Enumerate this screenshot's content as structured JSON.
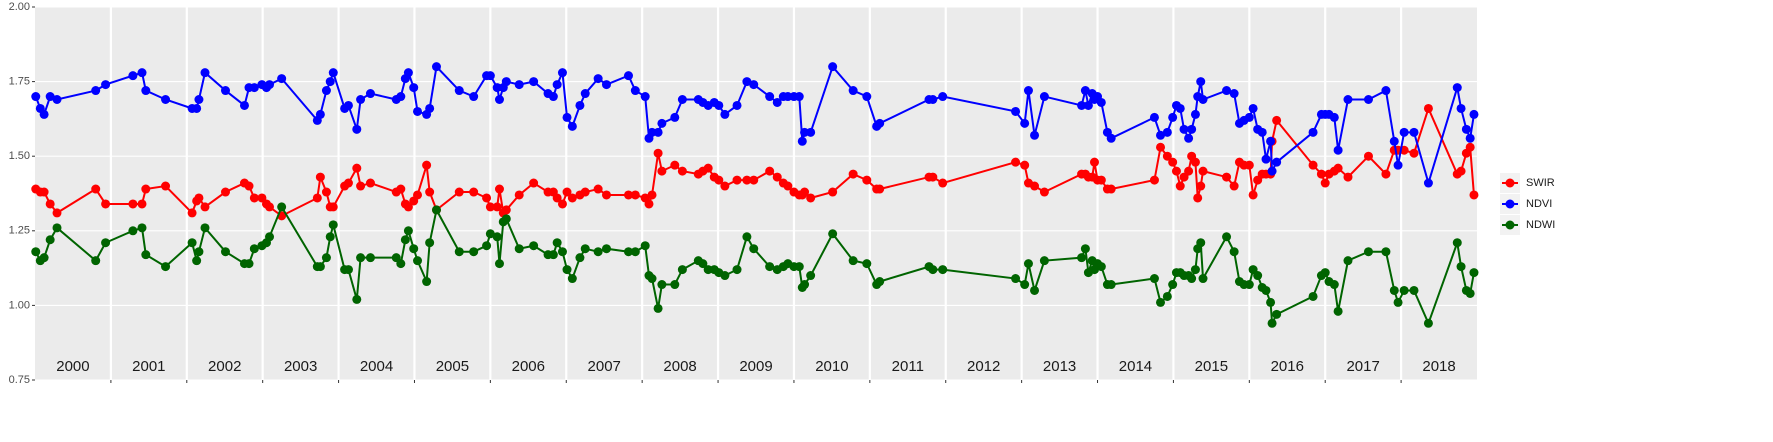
{
  "chart_data": {
    "type": "line",
    "x": [
      2000.01,
      2000.07,
      2000.12,
      2000.2,
      2000.29,
      2000.8,
      2000.93,
      2001.29,
      2001.41,
      2001.46,
      2001.72,
      2002.07,
      2002.13,
      2002.16,
      2002.24,
      2002.51,
      2002.76,
      2002.82,
      2002.89,
      2002.99,
      2003.05,
      2003.09,
      2003.25,
      2003.72,
      2003.76,
      2003.84,
      2003.89,
      2003.93,
      2004.08,
      2004.13,
      2004.24,
      2004.29,
      2004.42,
      2004.76,
      2004.82,
      2004.88,
      2004.92,
      2004.99,
      2005.04,
      2005.16,
      2005.2,
      2005.29,
      2005.59,
      2005.78,
      2005.95,
      2006,
      2006.09,
      2006.12,
      2006.17,
      2006.21,
      2006.38,
      2006.57,
      2006.76,
      2006.83,
      2006.88,
      2006.95,
      2007.01,
      2007.08,
      2007.18,
      2007.25,
      2007.42,
      2007.53,
      2007.82,
      2007.91,
      2008.04,
      2008.09,
      2008.13,
      2008.21,
      2008.26,
      2008.43,
      2008.53,
      2008.74,
      2008.8,
      2008.87,
      2008.95,
      2009.01,
      2009.09,
      2009.25,
      2009.38,
      2009.47,
      2009.68,
      2009.78,
      2009.86,
      2009.92,
      2010,
      2010.07,
      2010.11,
      2010.14,
      2010.22,
      2010.51,
      2010.78,
      2010.96,
      2011.09,
      2011.13,
      2011.78,
      2011.83,
      2011.96,
      2012.92,
      2013.04,
      2013.09,
      2013.17,
      2013.3,
      2013.79,
      2013.84,
      2013.88,
      2013.93,
      2013.96,
      2014,
      2014.05,
      2014.13,
      2014.18,
      2014.75,
      2014.83,
      2014.92,
      2014.99,
      2015.04,
      2015.09,
      2015.14,
      2015.2,
      2015.24,
      2015.29,
      2015.32,
      2015.36,
      2015.39,
      2015.7,
      2015.8,
      2015.87,
      2015.93,
      2016,
      2016.05,
      2016.11,
      2016.17,
      2016.22,
      2016.28,
      2016.3,
      2016.36,
      2016.84,
      2016.95,
      2017,
      2017.05,
      2017.12,
      2017.17,
      2017.3,
      2017.57,
      2017.8,
      2017.91,
      2017.96,
      2018.04,
      2018.17,
      2018.36,
      2018.74,
      2018.79,
      2018.86,
      2018.91,
      2018.96
    ],
    "series": [
      {
        "name": "SWIR",
        "color": "#ff0000",
        "values": [
          1.39,
          1.38,
          1.38,
          1.34,
          1.31,
          1.39,
          1.34,
          1.34,
          1.34,
          1.39,
          1.4,
          1.31,
          1.35,
          1.36,
          1.33,
          1.38,
          1.41,
          1.4,
          1.36,
          1.36,
          1.34,
          1.33,
          1.3,
          1.36,
          1.43,
          1.38,
          1.33,
          1.33,
          1.4,
          1.41,
          1.46,
          1.4,
          1.41,
          1.38,
          1.39,
          1.34,
          1.33,
          1.35,
          1.37,
          1.47,
          1.38,
          1.32,
          1.38,
          1.38,
          1.36,
          1.33,
          1.33,
          1.39,
          1.31,
          1.32,
          1.37,
          1.41,
          1.38,
          1.38,
          1.36,
          1.34,
          1.38,
          1.36,
          1.37,
          1.38,
          1.39,
          1.37,
          1.37,
          1.37,
          1.36,
          1.34,
          1.37,
          1.51,
          1.45,
          1.47,
          1.45,
          1.44,
          1.45,
          1.46,
          1.43,
          1.42,
          1.4,
          1.42,
          1.42,
          1.42,
          1.45,
          1.43,
          1.41,
          1.4,
          1.38,
          1.37,
          1.37,
          1.38,
          1.36,
          1.38,
          1.44,
          1.42,
          1.39,
          1.39,
          1.43,
          1.43,
          1.41,
          1.48,
          1.47,
          1.41,
          1.4,
          1.38,
          1.44,
          1.44,
          1.43,
          1.43,
          1.48,
          1.42,
          1.42,
          1.39,
          1.39,
          1.42,
          1.53,
          1.5,
          1.48,
          1.45,
          1.4,
          1.43,
          1.45,
          1.5,
          1.48,
          1.36,
          1.4,
          1.45,
          1.43,
          1.4,
          1.48,
          1.47,
          1.47,
          1.37,
          1.42,
          1.44,
          1.44,
          1.44,
          1.55,
          1.62,
          1.47,
          1.44,
          1.41,
          1.44,
          1.45,
          1.46,
          1.43,
          1.5,
          1.44,
          1.52,
          1.52,
          1.52,
          1.51,
          1.66,
          1.44,
          1.45,
          1.51,
          1.53,
          1.37
        ]
      },
      {
        "name": "NDVI",
        "color": "#0000ff",
        "values": [
          1.7,
          1.66,
          1.64,
          1.7,
          1.69,
          1.72,
          1.74,
          1.77,
          1.78,
          1.72,
          1.69,
          1.66,
          1.66,
          1.69,
          1.78,
          1.72,
          1.67,
          1.73,
          1.73,
          1.74,
          1.73,
          1.74,
          1.76,
          1.62,
          1.64,
          1.72,
          1.75,
          1.78,
          1.66,
          1.67,
          1.59,
          1.69,
          1.71,
          1.69,
          1.7,
          1.76,
          1.78,
          1.73,
          1.65,
          1.64,
          1.66,
          1.8,
          1.72,
          1.7,
          1.77,
          1.77,
          1.73,
          1.69,
          1.73,
          1.75,
          1.74,
          1.75,
          1.71,
          1.7,
          1.74,
          1.78,
          1.63,
          1.6,
          1.67,
          1.71,
          1.76,
          1.74,
          1.77,
          1.72,
          1.7,
          1.56,
          1.58,
          1.58,
          1.61,
          1.63,
          1.69,
          1.69,
          1.68,
          1.67,
          1.68,
          1.67,
          1.64,
          1.67,
          1.75,
          1.74,
          1.7,
          1.68,
          1.7,
          1.7,
          1.7,
          1.7,
          1.55,
          1.58,
          1.58,
          1.8,
          1.72,
          1.7,
          1.6,
          1.61,
          1.69,
          1.69,
          1.7,
          1.65,
          1.61,
          1.72,
          1.57,
          1.7,
          1.67,
          1.72,
          1.67,
          1.71,
          1.69,
          1.7,
          1.68,
          1.58,
          1.56,
          1.63,
          1.57,
          1.58,
          1.63,
          1.67,
          1.66,
          1.59,
          1.56,
          1.59,
          1.64,
          1.7,
          1.75,
          1.69,
          1.72,
          1.71,
          1.61,
          1.62,
          1.63,
          1.66,
          1.59,
          1.58,
          1.49,
          1.55,
          1.45,
          1.48,
          1.58,
          1.64,
          1.64,
          1.64,
          1.63,
          1.52,
          1.69,
          1.69,
          1.72,
          1.55,
          1.47,
          1.58,
          1.58,
          1.41,
          1.73,
          1.66,
          1.59,
          1.56,
          1.64
        ]
      },
      {
        "name": "NDWI",
        "color": "#006400",
        "values": [
          1.18,
          1.15,
          1.16,
          1.22,
          1.26,
          1.15,
          1.21,
          1.25,
          1.26,
          1.17,
          1.13,
          1.21,
          1.15,
          1.18,
          1.26,
          1.18,
          1.14,
          1.14,
          1.19,
          1.2,
          1.21,
          1.23,
          1.33,
          1.13,
          1.13,
          1.16,
          1.23,
          1.27,
          1.12,
          1.12,
          1.02,
          1.16,
          1.16,
          1.16,
          1.14,
          1.22,
          1.25,
          1.19,
          1.15,
          1.08,
          1.21,
          1.32,
          1.18,
          1.18,
          1.2,
          1.24,
          1.23,
          1.14,
          1.28,
          1.29,
          1.19,
          1.2,
          1.17,
          1.17,
          1.21,
          1.18,
          1.12,
          1.09,
          1.16,
          1.19,
          1.18,
          1.19,
          1.18,
          1.18,
          1.2,
          1.1,
          1.09,
          0.99,
          1.07,
          1.07,
          1.12,
          1.15,
          1.14,
          1.12,
          1.12,
          1.11,
          1.1,
          1.12,
          1.23,
          1.19,
          1.13,
          1.12,
          1.13,
          1.14,
          1.13,
          1.13,
          1.06,
          1.07,
          1.1,
          1.24,
          1.15,
          1.14,
          1.07,
          1.08,
          1.13,
          1.12,
          1.12,
          1.09,
          1.07,
          1.14,
          1.05,
          1.15,
          1.16,
          1.19,
          1.11,
          1.15,
          1.12,
          1.14,
          1.13,
          1.07,
          1.07,
          1.09,
          1.01,
          1.03,
          1.07,
          1.11,
          1.11,
          1.1,
          1.1,
          1.09,
          1.12,
          1.19,
          1.21,
          1.09,
          1.23,
          1.18,
          1.08,
          1.07,
          1.07,
          1.12,
          1.1,
          1.06,
          1.05,
          1.01,
          0.94,
          0.97,
          1.03,
          1.1,
          1.11,
          1.08,
          1.07,
          0.98,
          1.15,
          1.18,
          1.18,
          1.05,
          1.01,
          1.05,
          1.05,
          0.94,
          1.21,
          1.13,
          1.05,
          1.04,
          1.11
        ]
      }
    ],
    "xlim": [
      2000,
      2019
    ],
    "xticks": [
      2001,
      2002,
      2003,
      2004,
      2005,
      2006,
      2007,
      2008,
      2009,
      2010,
      2011,
      2012,
      2013,
      2014,
      2015,
      2016,
      2017,
      2018
    ],
    "year_labels": [
      "2000",
      "2001",
      "2002",
      "2003",
      "2004",
      "2005",
      "2006",
      "2007",
      "2008",
      "2009",
      "2010",
      "2011",
      "2012",
      "2013",
      "2014",
      "2015",
      "2016",
      "2017",
      "2018"
    ],
    "ylim": [
      0.75,
      2.0
    ],
    "yticks": [
      {
        "value": 0.75,
        "label": "0.75"
      },
      {
        "value": 1.0,
        "label": "1.00"
      },
      {
        "value": 1.25,
        "label": "1.25"
      },
      {
        "value": 1.5,
        "label": "1.50"
      },
      {
        "value": 1.75,
        "label": "1.75"
      },
      {
        "value": 2.0,
        "label": "2.00"
      }
    ],
    "grid": true,
    "legend": "right"
  }
}
